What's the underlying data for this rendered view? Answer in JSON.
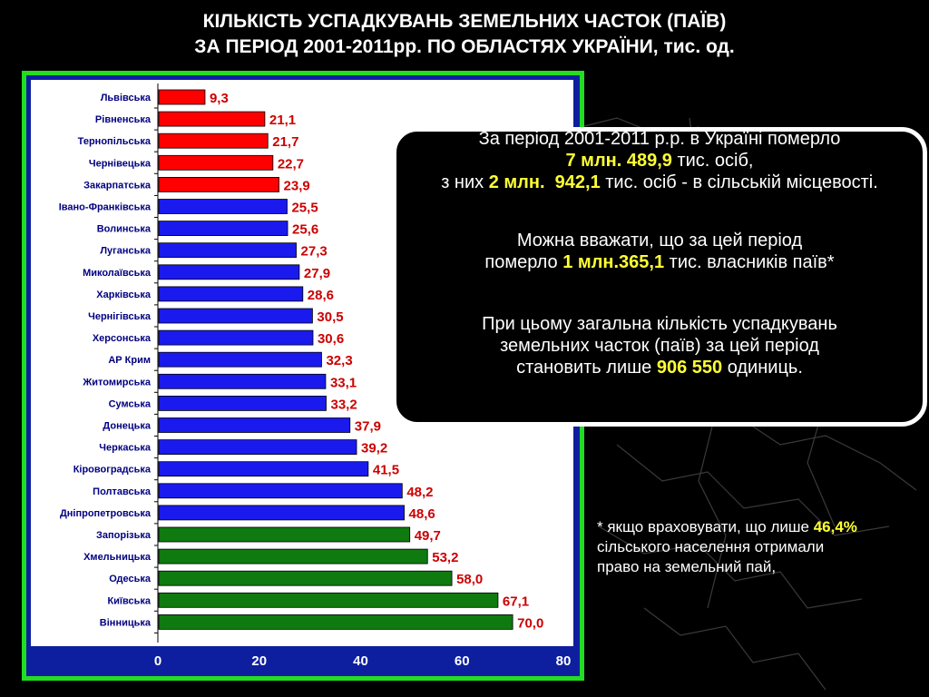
{
  "title": {
    "line1": "КІЛЬКІСТЬ УСПАДКУВАНЬ ЗЕМЕЛЬНИХ ЧАСТОК (ПАЇВ)",
    "line2": "ЗА ПЕРІОД 2001-2011рр. ПО ОБЛАСТЯХ УКРАЇНИ, тис. од."
  },
  "info": {
    "p1_line1": "За період 2001-2011 р.р. в Україні померло",
    "p1_line2_value": "7 млн. 489,9",
    "p1_line2_text": " тис. осіб,",
    "p1_line3_prefix": "з них ",
    "p1_line3_value1": "2 млн.",
    "p1_line3_value2": "942,1",
    "p1_line3_text": " тис. осіб - в сільській місцевості.",
    "p2_line1": "Можна вважати, що за цей період",
    "p2_line2_prefix": "померло ",
    "p2_line2_value": "1 млн.365,1",
    "p2_line2_text": " тис. власників паїв*",
    "p3_line1": "При цьому загальна кількість успадкувань",
    "p3_line2": "земельних часток (паїв) за цей період",
    "p3_line3_prefix": "становить лише ",
    "p3_line3_value": "906 550",
    "p3_line3_text": " одиниць."
  },
  "footnote": {
    "line1_prefix": "* якщо враховувати, що лише ",
    "line1_value": "46,4%",
    "line2": "сільського населення отримали",
    "line3": "право на земельний пай,"
  },
  "colors": {
    "background": "#000000",
    "frame_border": "#22dd22",
    "plot_bg": "#0d1f9e",
    "chart_area": "#ffffff",
    "bar_red": "#ff0000",
    "bar_blue": "#1a1aee",
    "bar_green": "#0f7a0f",
    "value_label": "#cc0000",
    "highlight": "#ffff33"
  },
  "chart_data": {
    "type": "bar",
    "orientation": "horizontal",
    "categories": [
      "Львівська",
      "Рівненська",
      "Тернопільська",
      "Чернівецька",
      "Закарпатська",
      "Івано-Франківська",
      "Волинська",
      "Луганська",
      "Миколаївська",
      "Харківська",
      "Чернігівська",
      "Херсонська",
      "АР Крим",
      "Житомирська",
      "Сумська",
      "Донецька",
      "Черкаська",
      "Кіровоградська",
      "Полтавська",
      "Дніпропетровська",
      "Запорізька",
      "Хмельницька",
      "Одеська",
      "Київська",
      "Вінницька"
    ],
    "values": [
      9.3,
      21.1,
      21.7,
      22.7,
      23.9,
      25.5,
      25.6,
      27.3,
      27.9,
      28.6,
      30.5,
      30.6,
      32.3,
      33.1,
      33.2,
      37.9,
      39.2,
      41.5,
      48.2,
      48.6,
      49.7,
      53.2,
      58.0,
      67.1,
      70.0
    ],
    "value_labels": [
      "9,3",
      "21,1",
      "21,7",
      "22,7",
      "23,9",
      "25,5",
      "25,6",
      "27,3",
      "27,9",
      "28,6",
      "30,5",
      "30,6",
      "32,3",
      "33,1",
      "33,2",
      "37,9",
      "39,2",
      "41,5",
      "48,2",
      "48,6",
      "49,7",
      "53,2",
      "58,0",
      "67,1",
      "70,0"
    ],
    "bar_groups": [
      "red",
      "red",
      "red",
      "red",
      "red",
      "blue",
      "blue",
      "blue",
      "blue",
      "blue",
      "blue",
      "blue",
      "blue",
      "blue",
      "blue",
      "blue",
      "blue",
      "blue",
      "blue",
      "blue",
      "green",
      "green",
      "green",
      "green",
      "green"
    ],
    "xlim": [
      0,
      80
    ],
    "xticks": [
      0,
      20,
      40,
      60,
      80
    ],
    "grid": false,
    "legend": "none",
    "title": "",
    "xlabel": "",
    "ylabel": ""
  }
}
